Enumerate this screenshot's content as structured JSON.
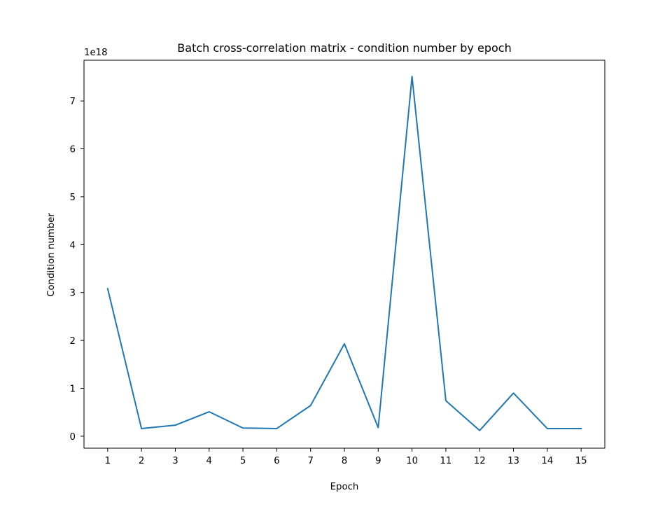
{
  "chart_data": {
    "type": "line",
    "title": "Batch cross-correlation matrix - condition number by epoch",
    "xlabel": "Epoch",
    "ylabel": "Condition number",
    "y_offset_label": "1e18",
    "xlim": [
      0.3,
      15.7
    ],
    "ylim": [
      -0.25,
      7.85
    ],
    "xticks": [
      1,
      2,
      3,
      4,
      5,
      6,
      7,
      8,
      9,
      10,
      11,
      12,
      13,
      14,
      15
    ],
    "yticks": [
      0,
      1,
      2,
      3,
      4,
      5,
      6,
      7
    ],
    "grid": false,
    "line_color": "#1f77b4",
    "series": [
      {
        "x": [
          1,
          2,
          3,
          4,
          5,
          6,
          7,
          8,
          9,
          10,
          11,
          12,
          13,
          14,
          15
        ],
        "values": [
          3.08,
          0.16,
          0.23,
          0.51,
          0.17,
          0.16,
          0.64,
          1.93,
          0.18,
          7.51,
          0.74,
          0.12,
          0.9,
          0.16,
          0.16
        ]
      }
    ]
  }
}
